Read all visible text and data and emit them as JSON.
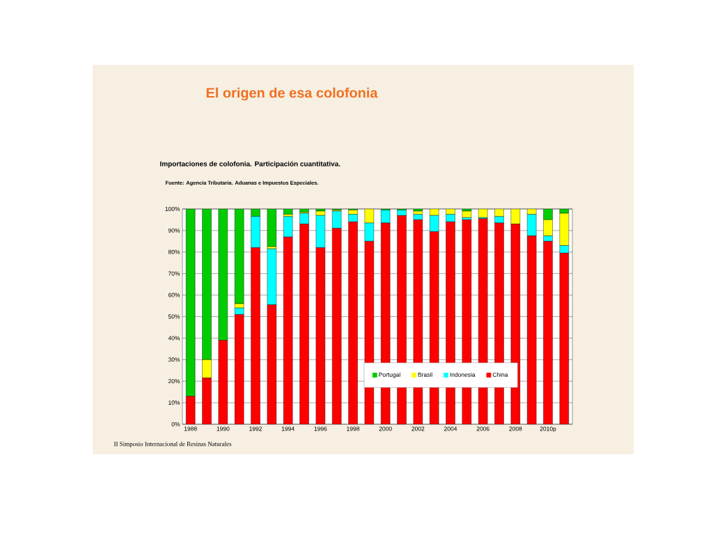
{
  "chart_data": {
    "type": "bar",
    "stacked": true,
    "title": "El origen de esa colofonia",
    "subtitle": "Importaciones de colofonia. Participación cuantitativa.",
    "annotations": [
      "Fuente: Agencia Tributaria. Aduanas e Impuestos Especiales.",
      "II Simposio Internacional de Resinas Naturales"
    ],
    "categories": [
      "1988",
      null,
      "1990",
      null,
      "1992",
      null,
      "1994",
      null,
      "1996",
      null,
      "1998",
      null,
      "2000",
      null,
      "2002",
      null,
      "2004",
      null,
      "2006",
      null,
      "2008",
      null,
      "2010p",
      null
    ],
    "series": [
      {
        "name": "China",
        "color": "#ff0000",
        "values": [
          13,
          21.5,
          39,
          51,
          82,
          55.5,
          87,
          93,
          82,
          91,
          94,
          85,
          93.5,
          97,
          95,
          89.5,
          94,
          95,
          95.5,
          93.5,
          93,
          87.5,
          85,
          79.5
        ]
      },
      {
        "name": "Indonesia",
        "color": "#00ffff",
        "values": [
          0,
          0,
          0,
          3,
          14.5,
          26,
          9.5,
          5,
          15,
          8,
          3.5,
          8.5,
          6,
          2.5,
          2.5,
          7.5,
          3.5,
          1,
          0.5,
          3,
          0,
          10,
          2.5,
          3.5
        ]
      },
      {
        "name": "Brasil",
        "color": "#ffff00",
        "values": [
          0,
          8.5,
          0,
          2,
          0,
          1,
          1,
          0.5,
          2,
          0.5,
          2,
          6.5,
          0,
          0,
          1.5,
          3,
          2.5,
          3,
          4,
          3.5,
          7,
          2.5,
          7.5,
          15
        ]
      },
      {
        "name": "Portugal",
        "color": "#00cc00",
        "values": [
          87,
          70,
          61,
          44,
          3.5,
          17.5,
          2.5,
          1.5,
          1,
          0.5,
          0.5,
          0,
          0.5,
          0.5,
          1,
          0,
          0,
          1,
          0,
          0,
          0,
          0,
          5,
          2
        ]
      }
    ],
    "ylim": [
      0,
      100
    ],
    "yticks": [
      {
        "value": 0,
        "label": "0%"
      },
      {
        "value": 10,
        "label": "10%"
      },
      {
        "value": 20,
        "label": "20%"
      },
      {
        "value": 30,
        "label": "30%"
      },
      {
        "value": 40,
        "label": "40%"
      },
      {
        "value": 50,
        "label": "50%"
      },
      {
        "value": 60,
        "label": "60%"
      },
      {
        "value": 70,
        "label": "70%"
      },
      {
        "value": 80,
        "label": "80%"
      },
      {
        "value": 90,
        "label": "90%"
      },
      {
        "value": 100,
        "label": "100%"
      }
    ],
    "grid": "y",
    "legend": "bottom right"
  }
}
